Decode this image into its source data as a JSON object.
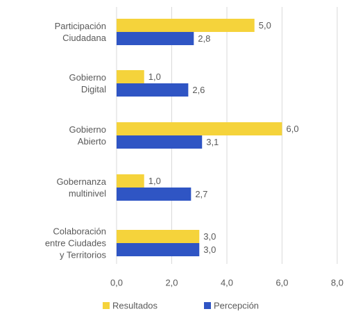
{
  "chart_data": {
    "type": "bar",
    "orientation": "horizontal",
    "categories": [
      [
        "Participación",
        "Ciudadana"
      ],
      [
        "Gobierno",
        "Digital"
      ],
      [
        "Gobierno",
        "Abierto"
      ],
      [
        "Gobernanza",
        "multinivel"
      ],
      [
        "Colaboración",
        "entre Ciudades",
        "y Territorios"
      ]
    ],
    "series": [
      {
        "name": "Resultados",
        "color": "#f5d33b",
        "values": [
          5.0,
          1.0,
          6.0,
          1.0,
          3.0
        ],
        "labels": [
          "5,0",
          "1,0",
          "6,0",
          "1,0",
          "3,0"
        ]
      },
      {
        "name": "Percepción",
        "color": "#2f55c4",
        "values": [
          2.8,
          2.6,
          3.1,
          2.7,
          3.0
        ],
        "labels": [
          "2,8",
          "2,6",
          "3,1",
          "2,7",
          "3,0"
        ]
      }
    ],
    "xlim": [
      0,
      8
    ],
    "xticks": [
      0,
      2,
      4,
      6,
      8
    ],
    "xtick_labels": [
      "0,0",
      "2,0",
      "4,0",
      "6,0",
      "8,0"
    ],
    "grid": true,
    "legend_position": "bottom",
    "gridline_color": "#d9d9d9",
    "text_color": "#595959"
  }
}
